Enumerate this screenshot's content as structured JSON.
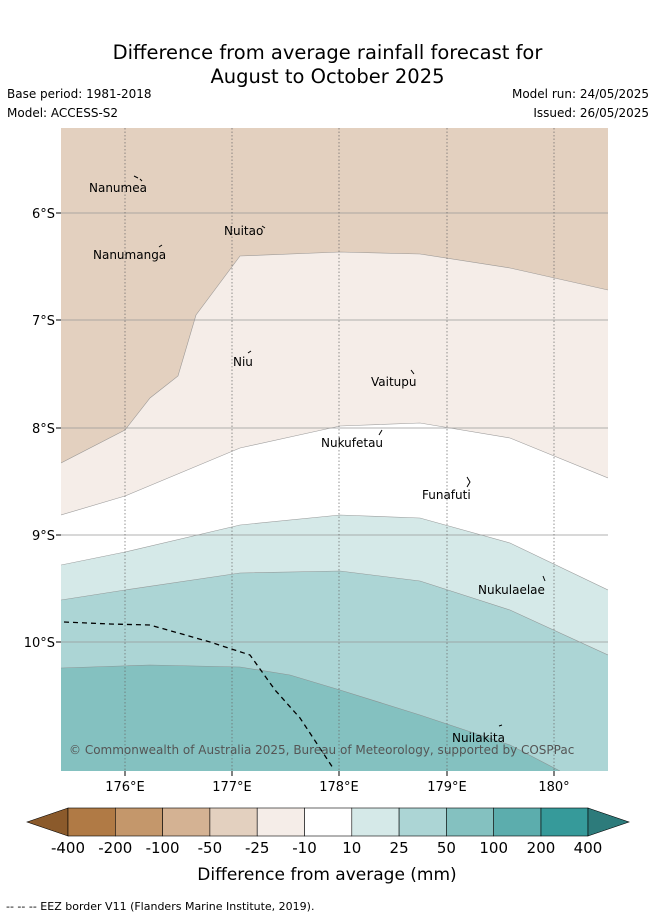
{
  "title_line1": "Difference from average rainfall forecast for",
  "title_line2": "August to October 2025",
  "base_period": "Base period: 1981-2018",
  "model": "Model: ACCESS-S2",
  "model_run": "Model run: 24/05/2025",
  "issued": "Issued: 26/05/2025",
  "map": {
    "x_ticks": [
      "176°E",
      "177°E",
      "178°E",
      "179°E",
      "180°"
    ],
    "y_ticks": [
      "6°S",
      "7°S",
      "8°S",
      "9°S",
      "10°S"
    ],
    "places": [
      "Nanumea",
      "Nuitao",
      "Nanumanga",
      "Niu",
      "Vaitupu",
      "Nukufetau",
      "Funafuti",
      "Nukulaelae",
      "Nuilakita"
    ],
    "copyright": "© Commonwealth of Australia 2025, Bureau of Meteorology, supported by COSPPac",
    "eez_line_style": "dashed"
  },
  "colorbar": {
    "tick_labels": [
      "-400",
      "-200",
      "-100",
      "-50",
      "-25",
      "-10",
      "10",
      "25",
      "50",
      "100",
      "200",
      "400"
    ],
    "colors": [
      "#8b5a2b",
      "#b07a45",
      "#c4976b",
      "#d4b293",
      "#e3d0bf",
      "#f5ede8",
      "#ffffff",
      "#d5e9e8",
      "#acd5d5",
      "#84c1c0",
      "#5cadad",
      "#369a9a",
      "#2d7b7b"
    ],
    "label": "Difference from average (mm)"
  },
  "footer": "-- -- -- EEZ border V11 (Flanders Marine Institute, 2019)."
}
